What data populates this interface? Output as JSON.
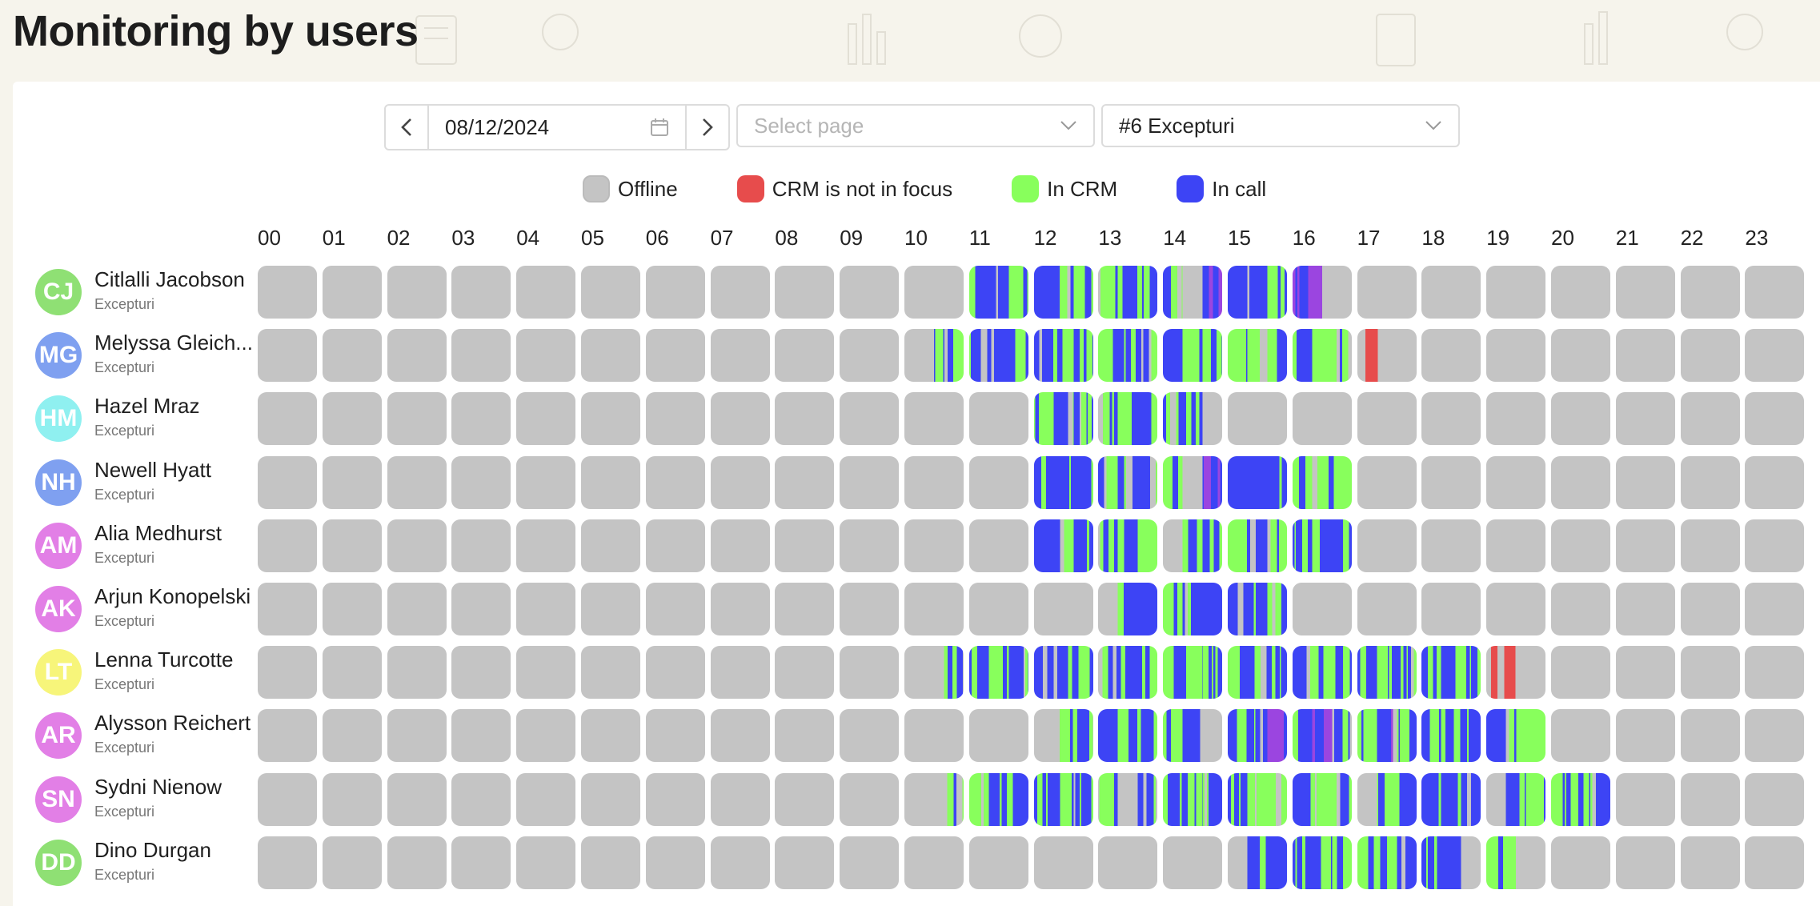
{
  "title": "Monitoring by users",
  "controls": {
    "date": "08/12/2024",
    "page_placeholder": "Select page",
    "group_value": "#6 Excepturi"
  },
  "legend": [
    {
      "label": "Offline",
      "color": "#c4c4c4"
    },
    {
      "label": "CRM is not in focus",
      "color": "#e74c4c"
    },
    {
      "label": "In CRM",
      "color": "#88ff5c"
    },
    {
      "label": "In call",
      "color": "#3d44f5"
    }
  ],
  "colors": {
    "offline": "#c4c4c4",
    "not_focus": "#e74c4c",
    "in_crm": "#88ff5c",
    "in_call": "#3d44f5",
    "accent_purple": "#9b45e0"
  },
  "hours": [
    "00",
    "01",
    "02",
    "03",
    "04",
    "05",
    "06",
    "07",
    "08",
    "09",
    "10",
    "11",
    "12",
    "13",
    "14",
    "15",
    "16",
    "17",
    "18",
    "19",
    "20",
    "21",
    "22",
    "23"
  ],
  "users": [
    {
      "initials": "CJ",
      "name": "Citlalli Jacobson",
      "group": "Excepturi",
      "avatar_color": "#8fe074",
      "active": {
        "11": "gbg",
        "12": "bbg",
        "13": "gbb",
        "14": "gop",
        "15": "bbg",
        "16": "po"
      }
    },
    {
      "initials": "MG",
      "name": "Melyssa Gleich...",
      "group": "Excepturi",
      "avatar_color": "#7fa0f0",
      "active": {
        "10": "og",
        "11": "bbg",
        "12": "bgg",
        "13": "gbg",
        "14": "bgb",
        "15": "ggb",
        "16": "bgb",
        "17": "ro"
      }
    },
    {
      "initials": "HM",
      "name": "Hazel Mraz",
      "group": "Excepturi",
      "avatar_color": "#8ff0f0",
      "active": {
        "12": "gbb",
        "13": "gbb",
        "14": "gbo"
      }
    },
    {
      "initials": "NH",
      "name": "Newell Hyatt",
      "group": "Excepturi",
      "avatar_color": "#7fa0f0",
      "active": {
        "12": "bbb",
        "13": "bgb",
        "14": "gop",
        "15": "bbg",
        "16": "bgg"
      }
    },
    {
      "initials": "AM",
      "name": "Alia Medhurst",
      "group": "Excepturi",
      "avatar_color": "#e27fe6",
      "active": {
        "12": "bgb",
        "13": "bbg",
        "14": "ogb",
        "15": "gbg",
        "16": "bgb"
      }
    },
    {
      "initials": "AK",
      "name": "Arjun Konopelski",
      "group": "Excepturi",
      "avatar_color": "#e27fe6",
      "active": {
        "13": "obb",
        "14": "gbb",
        "15": "bbg"
      }
    },
    {
      "initials": "LT",
      "name": "Lenna Turcotte",
      "group": "Excepturi",
      "avatar_color": "#f7f57a",
      "active": {
        "10": "oog",
        "11": "bgb",
        "12": "bbg",
        "13": "gbg",
        "14": "bgb",
        "15": "gbb",
        "16": "bgb",
        "17": "bgg",
        "18": "gbg",
        "19": "ro"
      }
    },
    {
      "initials": "AR",
      "name": "Alysson Reichert",
      "group": "Excepturi",
      "avatar_color": "#e27fe6",
      "active": {
        "12": "ogb",
        "13": "bgb",
        "14": "gbo",
        "15": "bbp",
        "16": "bpb",
        "17": "gpg",
        "18": "bbb",
        "19": "bgg"
      }
    },
    {
      "initials": "SN",
      "name": "Sydni Nienow",
      "group": "Excepturi",
      "avatar_color": "#e27fe6",
      "active": {
        "10": "oog",
        "11": "ggb",
        "12": "bgb",
        "13": "gob",
        "14": "bgb",
        "15": "bgg",
        "16": "bgb",
        "17": "ogb",
        "18": "gbb",
        "19": "obg",
        "20": "ggb"
      }
    },
    {
      "initials": "DD",
      "name": "Dino Durgan",
      "group": "Excepturi",
      "avatar_color": "#8fe074",
      "active": {
        "15": "obb",
        "16": "gbg",
        "17": "ggb",
        "18": "bbo",
        "19": "go"
      }
    }
  ]
}
